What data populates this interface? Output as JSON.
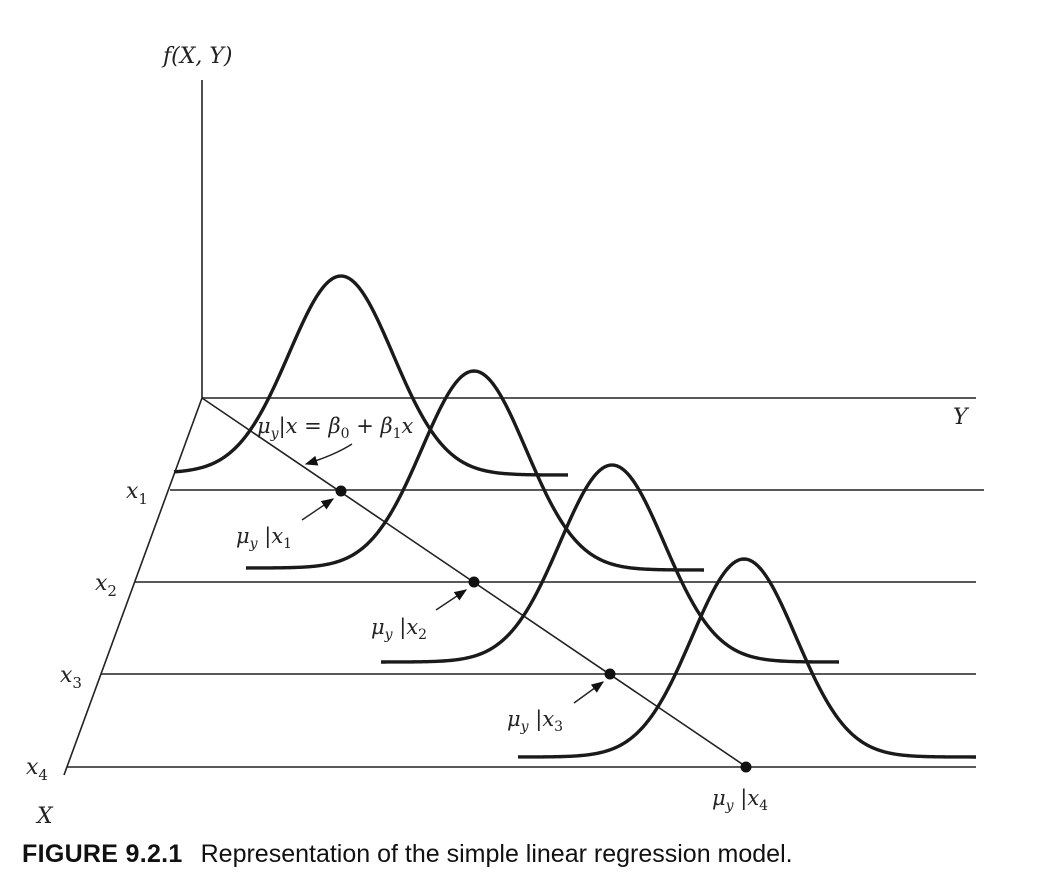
{
  "figure": {
    "vertical_axis_label": "f(X, Y)",
    "y_axis_label": "Y",
    "x_axis_label": "X",
    "x_levels": [
      {
        "name": "x",
        "sub": "1"
      },
      {
        "name": "x",
        "sub": "2"
      },
      {
        "name": "x",
        "sub": "3"
      },
      {
        "name": "x",
        "sub": "4"
      }
    ],
    "regression_label": {
      "mu": "μ",
      "mu_sub": "y",
      "cond": "|x",
      "eq": " = ",
      "b0": "β",
      "b0_sub": "0",
      "plus": " + ",
      "b1": "β",
      "b1_sub": "1",
      "tail": "x"
    },
    "mean_labels": [
      {
        "mu": "μ",
        "sub": "y",
        "cond": " |x",
        "cond_sub": "1"
      },
      {
        "mu": "μ",
        "sub": "y",
        "cond": " |x",
        "cond_sub": "2"
      },
      {
        "mu": "μ",
        "sub": "y",
        "cond": " |x",
        "cond_sub": "3"
      },
      {
        "mu": "μ",
        "sub": "y",
        "cond": " |x",
        "cond_sub": "4"
      }
    ],
    "distributions": 4
  },
  "caption": {
    "label": "FIGURE 9.2.1",
    "text": "Representation of the simple linear regression model."
  }
}
